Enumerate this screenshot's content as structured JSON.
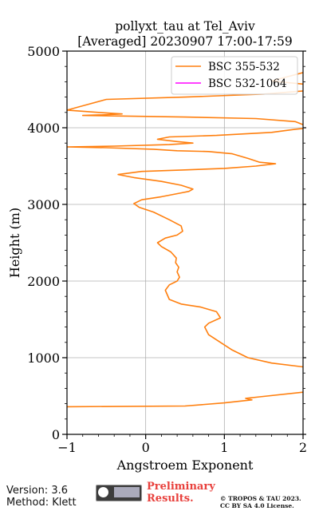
{
  "chart_data": {
    "type": "line",
    "title": "pollyxt_tau at Tel_Aviv",
    "subtitle": "[Averaged] 20230907 17:00-17:59",
    "xlabel": "Angstroem Exponent",
    "ylabel": "Height (m)",
    "xlim": [
      -1,
      2
    ],
    "ylim": [
      0,
      5000
    ],
    "xticks": [
      "−1",
      "0",
      "1",
      "2"
    ],
    "yticks": [
      "0",
      "1000",
      "2000",
      "3000",
      "4000",
      "5000"
    ],
    "grid": true,
    "legend_position": "top-right",
    "series": [
      {
        "name": "BSC 355-532",
        "color": "#ff7f0e",
        "points": [
          [
            -1.0,
            360
          ],
          [
            0.5,
            370
          ],
          [
            1.0,
            410
          ],
          [
            1.35,
            450
          ],
          [
            1.27,
            470
          ],
          [
            1.45,
            490
          ],
          [
            2.0,
            550
          ],
          [
            2.1,
            560
          ],
          [
            2.0,
            880
          ],
          [
            1.6,
            930
          ],
          [
            1.3,
            1000
          ],
          [
            1.1,
            1100
          ],
          [
            0.95,
            1200
          ],
          [
            0.8,
            1300
          ],
          [
            0.75,
            1400
          ],
          [
            0.8,
            1450
          ],
          [
            0.95,
            1520
          ],
          [
            0.9,
            1600
          ],
          [
            0.7,
            1660
          ],
          [
            0.45,
            1700
          ],
          [
            0.3,
            1760
          ],
          [
            0.25,
            1880
          ],
          [
            0.3,
            1950
          ],
          [
            0.4,
            2000
          ],
          [
            0.43,
            2050
          ],
          [
            0.4,
            2120
          ],
          [
            0.42,
            2180
          ],
          [
            0.38,
            2240
          ],
          [
            0.39,
            2300
          ],
          [
            0.32,
            2380
          ],
          [
            0.2,
            2450
          ],
          [
            0.15,
            2500
          ],
          [
            0.25,
            2560
          ],
          [
            0.4,
            2600
          ],
          [
            0.47,
            2650
          ],
          [
            0.45,
            2720
          ],
          [
            0.3,
            2800
          ],
          [
            0.1,
            2900
          ],
          [
            -0.08,
            2960
          ],
          [
            -0.15,
            3010
          ],
          [
            -0.05,
            3060
          ],
          [
            0.2,
            3100
          ],
          [
            0.45,
            3150
          ],
          [
            0.55,
            3170
          ],
          [
            0.6,
            3200
          ],
          [
            0.45,
            3250
          ],
          [
            0.2,
            3300
          ],
          [
            -0.15,
            3350
          ],
          [
            -0.35,
            3390
          ],
          [
            -0.05,
            3430
          ],
          [
            0.5,
            3450
          ],
          [
            1.0,
            3470
          ],
          [
            1.4,
            3500
          ],
          [
            1.65,
            3530
          ],
          [
            1.45,
            3550
          ],
          [
            1.3,
            3600
          ],
          [
            1.1,
            3660
          ],
          [
            0.8,
            3690
          ],
          [
            0.4,
            3700
          ],
          [
            0.1,
            3720
          ],
          [
            -0.5,
            3740
          ],
          [
            -1.0,
            3750
          ],
          [
            -0.4,
            3760
          ],
          [
            0.3,
            3780
          ],
          [
            0.6,
            3800
          ],
          [
            0.4,
            3820
          ],
          [
            0.15,
            3850
          ],
          [
            0.3,
            3880
          ],
          [
            0.9,
            3900
          ],
          [
            1.6,
            3940
          ],
          [
            1.9,
            3980
          ],
          [
            2.1,
            4000
          ],
          [
            1.9,
            4080
          ],
          [
            1.4,
            4120
          ],
          [
            0.5,
            4140
          ],
          [
            -0.8,
            4160
          ],
          [
            -0.5,
            4170
          ],
          [
            -0.3,
            4180
          ],
          [
            -0.6,
            4200
          ],
          [
            -1.0,
            4230
          ],
          [
            -0.5,
            4370
          ],
          [
            0.5,
            4400
          ],
          [
            1.5,
            4440
          ],
          [
            2.0,
            4480
          ],
          [
            2.1,
            4500
          ],
          [
            2.0,
            4570
          ],
          [
            1.6,
            4610
          ],
          [
            2.0,
            4720
          ],
          [
            2.1,
            4730
          ]
        ]
      },
      {
        "name": "BSC 532-1064",
        "color": "#ff00ff",
        "points": []
      }
    ]
  },
  "footer": {
    "version": "Version: 3.6",
    "method": "Method: Klett",
    "preliminary_line1": "Preliminary",
    "preliminary_line2": "Results.",
    "license_line1": "© TROPOS & TAU 2023.",
    "license_line2": "CC BY SA 4.0 License."
  }
}
